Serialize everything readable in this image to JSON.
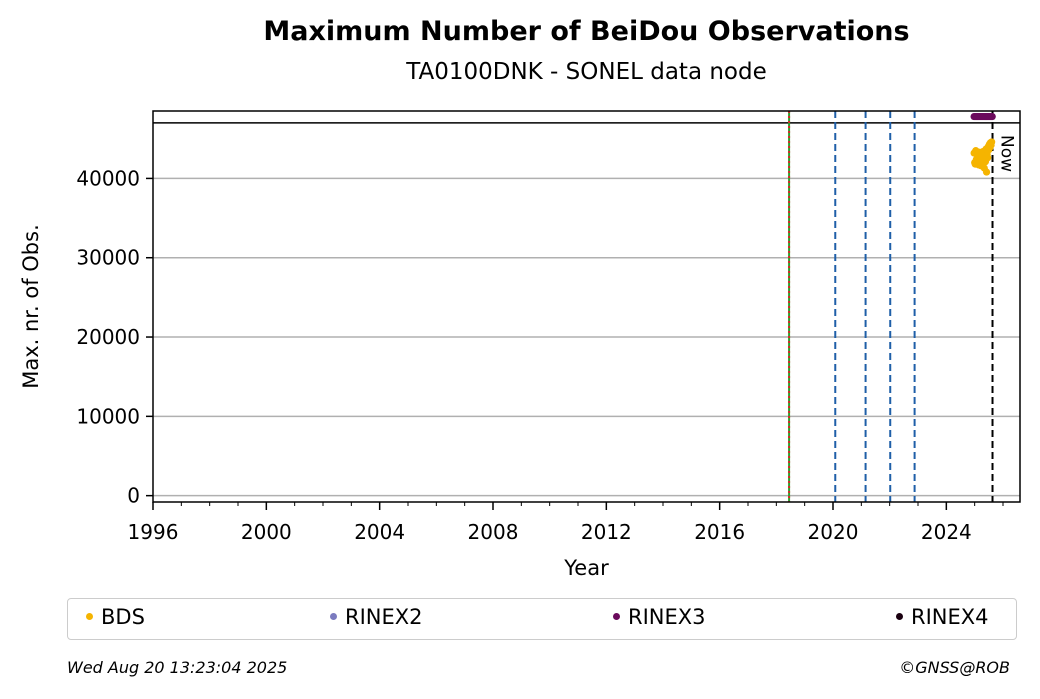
{
  "chart_data": {
    "type": "scatter",
    "title": "Maximum Number of BeiDou Observations",
    "subtitle": "TA0100DNK - SONEL data node",
    "xlabel": "Year",
    "ylabel": "Max. nr. of Obs.",
    "xlim": [
      1996.0,
      2026.6
    ],
    "ylim": [
      -800,
      48500
    ],
    "xticks": [
      1996,
      2000,
      2004,
      2008,
      2012,
      2016,
      2020,
      2024
    ],
    "yticks": [
      0,
      10000,
      20000,
      30000,
      40000
    ],
    "grid": "horizontal",
    "reference_line_y": 47000,
    "event_lines": [
      {
        "x": 2018.45,
        "color": "#2ca02c",
        "style": "solid"
      },
      {
        "x": 2018.45,
        "color": "#d62728",
        "style": "dotted"
      },
      {
        "x": 2020.08,
        "color": "#1f5fa8",
        "style": "dashed"
      },
      {
        "x": 2021.15,
        "color": "#1f5fa8",
        "style": "dashed"
      },
      {
        "x": 2022.02,
        "color": "#1f5fa8",
        "style": "dashed"
      },
      {
        "x": 2022.88,
        "color": "#1f5fa8",
        "style": "dashed"
      }
    ],
    "now_line": {
      "x": 2025.63,
      "label": "Now"
    },
    "series": [
      {
        "name": "BDS",
        "color": "#f5b400",
        "points": [
          [
            2024.98,
            43200
          ],
          [
            2025.0,
            42000
          ],
          [
            2025.02,
            41800
          ],
          [
            2025.04,
            43500
          ],
          [
            2025.06,
            42400
          ],
          [
            2025.08,
            41900
          ],
          [
            2025.1,
            43000
          ],
          [
            2025.12,
            42600
          ],
          [
            2025.14,
            41700
          ],
          [
            2025.16,
            43300
          ],
          [
            2025.18,
            42200
          ],
          [
            2025.2,
            42800
          ],
          [
            2025.22,
            41600
          ],
          [
            2025.24,
            43100
          ],
          [
            2025.26,
            42500
          ],
          [
            2025.28,
            42000
          ],
          [
            2025.3,
            43400
          ],
          [
            2025.32,
            42300
          ],
          [
            2025.34,
            41300
          ],
          [
            2025.36,
            42900
          ],
          [
            2025.38,
            42100
          ],
          [
            2025.4,
            43700
          ],
          [
            2025.42,
            40800
          ],
          [
            2025.44,
            43000
          ],
          [
            2025.46,
            42600
          ],
          [
            2025.48,
            44000
          ],
          [
            2025.5,
            43600
          ],
          [
            2025.52,
            44300
          ],
          [
            2025.54,
            43900
          ],
          [
            2025.56,
            44500
          ],
          [
            2025.58,
            44200
          ],
          [
            2025.6,
            44600
          ]
        ]
      },
      {
        "name": "RINEX2",
        "color": "#7b7bbf",
        "points": []
      },
      {
        "name": "RINEX3",
        "color": "#6b0a5c",
        "points": [
          [
            2024.98,
            47800
          ],
          [
            2025.02,
            47800
          ],
          [
            2025.06,
            47800
          ],
          [
            2025.1,
            47800
          ],
          [
            2025.14,
            47800
          ],
          [
            2025.18,
            47800
          ],
          [
            2025.22,
            47800
          ],
          [
            2025.26,
            47800
          ],
          [
            2025.3,
            47800
          ],
          [
            2025.34,
            47800
          ],
          [
            2025.38,
            47800
          ],
          [
            2025.42,
            47800
          ],
          [
            2025.46,
            47800
          ],
          [
            2025.5,
            47800
          ],
          [
            2025.54,
            47800
          ],
          [
            2025.58,
            47800
          ],
          [
            2025.62,
            47800
          ]
        ]
      },
      {
        "name": "RINEX4",
        "color": "#1a0010",
        "points": []
      }
    ]
  },
  "footer": {
    "timestamp": "Wed Aug 20 13:23:04 2025",
    "credit": "©GNSS@ROB"
  }
}
